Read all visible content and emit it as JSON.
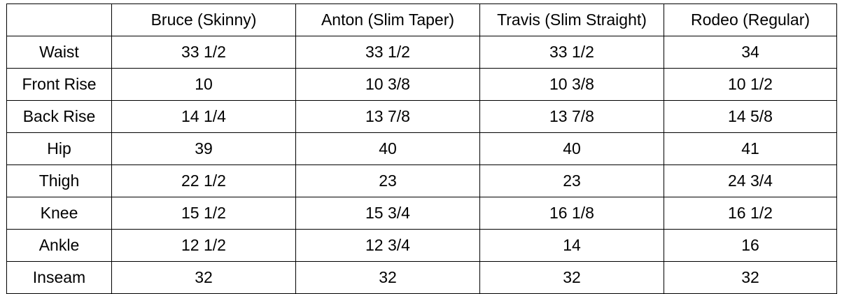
{
  "table": {
    "corner": "",
    "columns": [
      "Bruce (Skinny)",
      "Anton (Slim Taper)",
      "Travis (Slim Straight)",
      "Rodeo (Regular)"
    ],
    "rows": [
      {
        "label": "Waist",
        "values": [
          "33 1/2",
          "33 1/2",
          "33 1/2",
          "34"
        ]
      },
      {
        "label": "Front Rise",
        "values": [
          "10",
          "10 3/8",
          "10 3/8",
          "10 1/2"
        ]
      },
      {
        "label": "Back Rise",
        "values": [
          "14 1/4",
          "13 7/8",
          "13 7/8",
          "14 5/8"
        ]
      },
      {
        "label": "Hip",
        "values": [
          "39",
          "40",
          "40",
          "41"
        ]
      },
      {
        "label": "Thigh",
        "values": [
          "22 1/2",
          "23",
          "23",
          "24 3/4"
        ]
      },
      {
        "label": "Knee",
        "values": [
          "15 1/2",
          "15 3/4",
          "16 1/8",
          "16 1/2"
        ]
      },
      {
        "label": "Ankle",
        "values": [
          "12 1/2",
          "12 3/4",
          "14",
          "16"
        ]
      },
      {
        "label": "Inseam",
        "values": [
          "32",
          "32",
          "32",
          "32"
        ]
      }
    ]
  }
}
